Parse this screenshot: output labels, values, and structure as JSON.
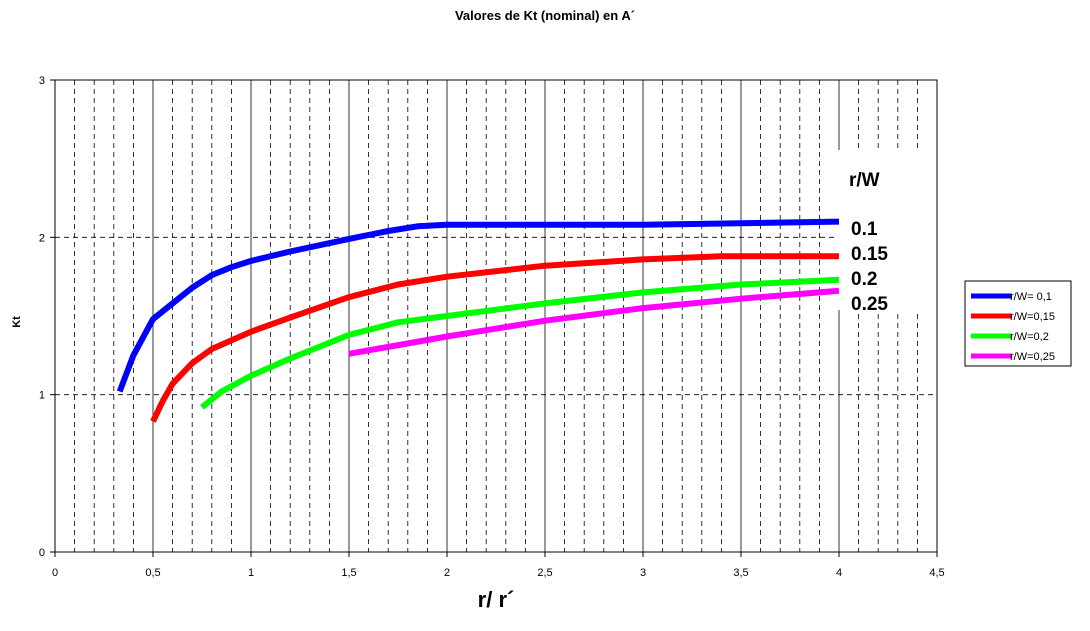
{
  "chart_data": {
    "type": "line",
    "title": "Valores de Kt (nominal) en A´",
    "xlabel": "r/ r´",
    "ylabel": "Kt",
    "xlim": [
      0,
      4.5
    ],
    "ylim": [
      0,
      3
    ],
    "x_ticks": [
      "0",
      "0,5",
      "1",
      "1,5",
      "2",
      "2,5",
      "3",
      "3,5",
      "4",
      "4,5"
    ],
    "y_ticks": [
      "0",
      "1",
      "2",
      "3"
    ],
    "grid": true,
    "legend_position": "right",
    "series": [
      {
        "name": "r/W= 0,1",
        "color": "#0000ff",
        "points": [
          [
            0.33,
            1.02
          ],
          [
            0.4,
            1.25
          ],
          [
            0.5,
            1.48
          ],
          [
            0.6,
            1.58
          ],
          [
            0.7,
            1.68
          ],
          [
            0.8,
            1.76
          ],
          [
            0.9,
            1.81
          ],
          [
            1.0,
            1.85
          ],
          [
            1.2,
            1.91
          ],
          [
            1.5,
            1.99
          ],
          [
            1.7,
            2.04
          ],
          [
            1.85,
            2.07
          ],
          [
            2.0,
            2.08
          ],
          [
            2.5,
            2.08
          ],
          [
            3.0,
            2.08
          ],
          [
            3.5,
            2.09
          ],
          [
            4.0,
            2.1
          ]
        ]
      },
      {
        "name": "r/W=0,15",
        "color": "#ff0000",
        "points": [
          [
            0.5,
            0.83
          ],
          [
            0.55,
            0.96
          ],
          [
            0.6,
            1.07
          ],
          [
            0.7,
            1.2
          ],
          [
            0.8,
            1.29
          ],
          [
            1.0,
            1.4
          ],
          [
            1.2,
            1.49
          ],
          [
            1.5,
            1.62
          ],
          [
            1.75,
            1.7
          ],
          [
            2.0,
            1.75
          ],
          [
            2.5,
            1.82
          ],
          [
            3.0,
            1.86
          ],
          [
            3.4,
            1.88
          ],
          [
            4.0,
            1.88
          ]
        ]
      },
      {
        "name": "r/W=0,2",
        "color": "#00ff00",
        "points": [
          [
            0.75,
            0.92
          ],
          [
            0.85,
            1.02
          ],
          [
            1.0,
            1.12
          ],
          [
            1.2,
            1.23
          ],
          [
            1.5,
            1.38
          ],
          [
            1.75,
            1.46
          ],
          [
            2.0,
            1.5
          ],
          [
            2.5,
            1.58
          ],
          [
            3.0,
            1.65
          ],
          [
            3.5,
            1.7
          ],
          [
            4.0,
            1.73
          ]
        ]
      },
      {
        "name": "r/W=0,25",
        "color": "#ff00ff",
        "points": [
          [
            1.5,
            1.26
          ],
          [
            2.0,
            1.37
          ],
          [
            2.5,
            1.47
          ],
          [
            3.0,
            1.55
          ],
          [
            3.5,
            1.61
          ],
          [
            4.0,
            1.66
          ]
        ]
      }
    ],
    "annotations": [
      "r/W",
      "0.1",
      "0.15",
      "0.2",
      "0.25"
    ]
  }
}
